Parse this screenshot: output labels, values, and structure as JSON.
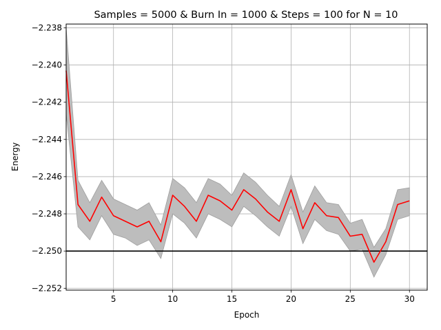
{
  "chart_data": {
    "type": "line",
    "title": "Samples = 5000 & Burn In = 1000 & Steps = 100 for N = 10",
    "xlabel": "Epoch",
    "ylabel": "Energy",
    "xlim": [
      1,
      31.5
    ],
    "ylim": [
      -2.2521,
      -2.2378
    ],
    "xticks": [
      5,
      10,
      15,
      20,
      25,
      30
    ],
    "xtick_labels": [
      "5",
      "10",
      "15",
      "20",
      "25",
      "30"
    ],
    "yticks": [
      -2.238,
      -2.24,
      -2.242,
      -2.244,
      -2.246,
      -2.248,
      -2.25,
      -2.252
    ],
    "ytick_labels": [
      "−2.238",
      "−2.240",
      "−2.242",
      "−2.244",
      "−2.246",
      "−2.248",
      "−2.250",
      "−2.252"
    ],
    "grid": true,
    "reference_line": {
      "y": -2.25,
      "color": "#000000"
    },
    "series": [
      {
        "x": [
          1,
          2,
          3,
          4,
          5,
          6,
          7,
          8,
          9,
          10,
          11,
          12,
          13,
          14,
          15,
          16,
          17,
          18,
          19,
          20,
          21,
          22,
          23,
          24,
          25,
          26,
          27,
          28,
          29,
          30
        ],
        "y": [
          -2.2403,
          -2.2475,
          -2.2484,
          -2.2471,
          -2.2481,
          -2.2484,
          -2.2487,
          -2.2484,
          -2.2495,
          -2.247,
          -2.2476,
          -2.2484,
          -2.247,
          -2.2473,
          -2.2478,
          -2.2467,
          -2.2472,
          -2.2479,
          -2.2484,
          -2.2467,
          -2.2488,
          -2.2474,
          -2.2481,
          -2.2482,
          -2.2492,
          -2.2491,
          -2.2506,
          -2.2495,
          -2.2475,
          -2.2473
        ],
        "upper": [
          -2.238,
          -2.2462,
          -2.2474,
          -2.2462,
          -2.2472,
          -2.2475,
          -2.2478,
          -2.2474,
          -2.2486,
          -2.2461,
          -2.2466,
          -2.2474,
          -2.2461,
          -2.2464,
          -2.247,
          -2.2458,
          -2.2463,
          -2.247,
          -2.2476,
          -2.2459,
          -2.2479,
          -2.2465,
          -2.2474,
          -2.2475,
          -2.2485,
          -2.2483,
          -2.2498,
          -2.2488,
          -2.2467,
          -2.2466
        ],
        "lower": [
          -2.2426,
          -2.2487,
          -2.2494,
          -2.2481,
          -2.2491,
          -2.2493,
          -2.2497,
          -2.2494,
          -2.2504,
          -2.248,
          -2.2485,
          -2.2493,
          -2.248,
          -2.2483,
          -2.2487,
          -2.2476,
          -2.2481,
          -2.2487,
          -2.2492,
          -2.2476,
          -2.2496,
          -2.2483,
          -2.2489,
          -2.2491,
          -2.25,
          -2.2499,
          -2.2514,
          -2.2502,
          -2.2483,
          -2.2481
        ],
        "color": "#ff0000",
        "band_color": "#bdbdbd"
      }
    ]
  }
}
